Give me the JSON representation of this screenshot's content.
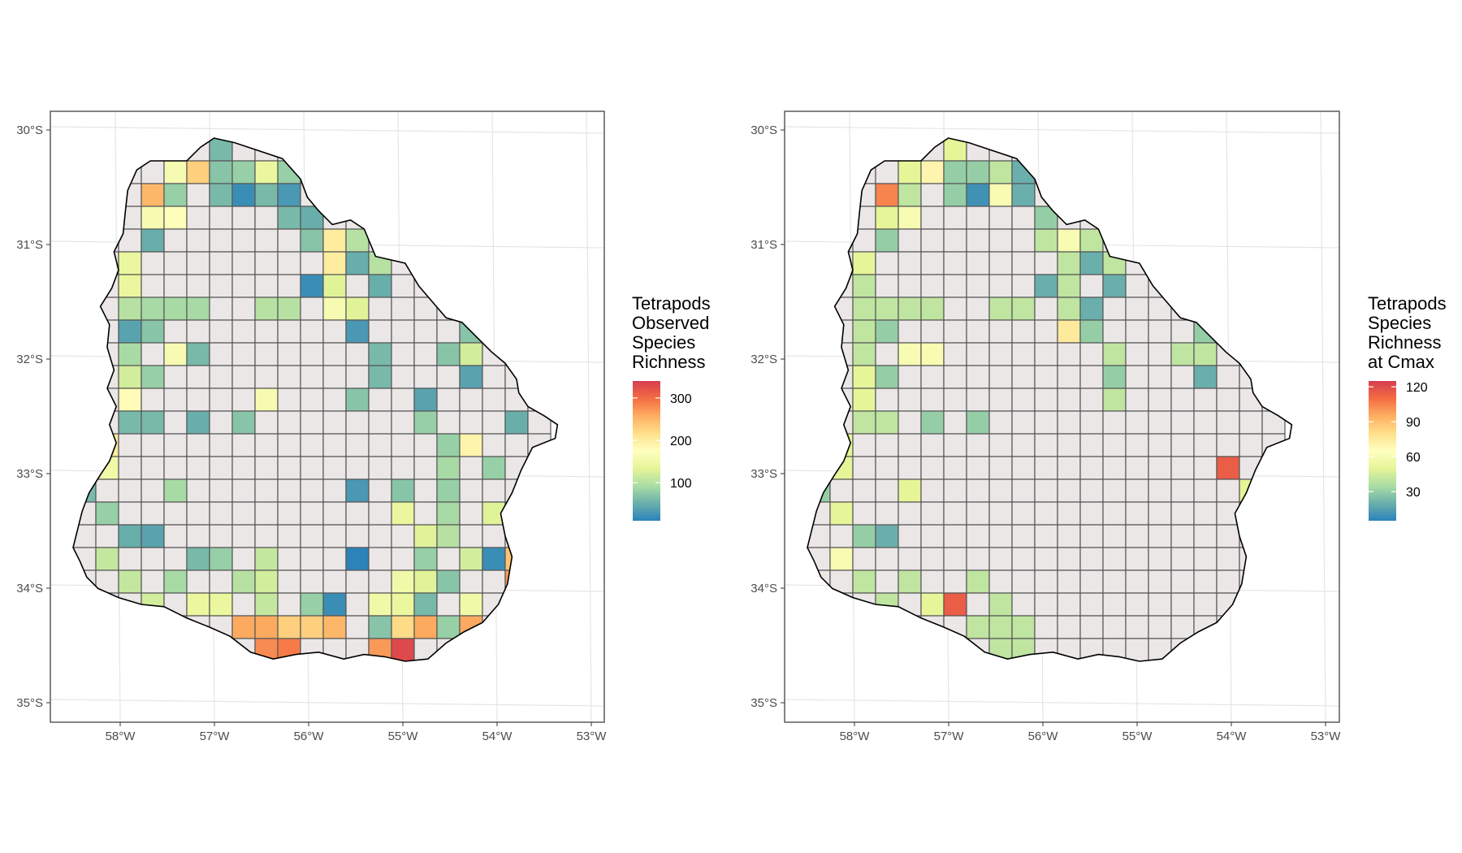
{
  "panels": [
    {
      "legend_title_lines": [
        "Tetrapods",
        "Observed",
        "Species",
        "Richness"
      ],
      "legend_ticks": [
        100,
        200,
        300
      ],
      "legend_range": [
        10,
        340
      ],
      "colors": {
        "missing": "#ebe7e6"
      },
      "values": [
        [
          null,
          null,
          null,
          null,
          null,
          null,
          60,
          null,
          null,
          null,
          null,
          null,
          null,
          null,
          null,
          null,
          null,
          null,
          null,
          null,
          null
        ],
        [
          null,
          null,
          null,
          null,
          160,
          230,
          70,
          80,
          140,
          80,
          null,
          null,
          null,
          null,
          null,
          null,
          null,
          null,
          null,
          null,
          null
        ],
        [
          null,
          null,
          null,
          250,
          80,
          null,
          60,
          20,
          60,
          30,
          null,
          null,
          null,
          null,
          null,
          null,
          null,
          null,
          null,
          null,
          null
        ],
        [
          null,
          null,
          null,
          160,
          170,
          null,
          null,
          null,
          null,
          60,
          50,
          null,
          null,
          null,
          null,
          null,
          null,
          null,
          null,
          null,
          null
        ],
        [
          null,
          null,
          null,
          50,
          null,
          null,
          null,
          null,
          null,
          null,
          70,
          200,
          100,
          null,
          null,
          null,
          null,
          null,
          null,
          null,
          null
        ],
        [
          null,
          null,
          140,
          null,
          null,
          null,
          null,
          null,
          null,
          null,
          null,
          200,
          50,
          100,
          null,
          null,
          null,
          null,
          null,
          null,
          null
        ],
        [
          null,
          null,
          140,
          null,
          null,
          null,
          null,
          null,
          null,
          null,
          20,
          130,
          null,
          50,
          null,
          null,
          null,
          null,
          null,
          null,
          null
        ],
        [
          null,
          null,
          100,
          90,
          90,
          90,
          null,
          null,
          100,
          100,
          null,
          160,
          130,
          null,
          null,
          null,
          null,
          null,
          30,
          null,
          null
        ],
        [
          null,
          null,
          40,
          70,
          null,
          null,
          null,
          null,
          null,
          null,
          null,
          null,
          30,
          null,
          null,
          null,
          null,
          70,
          null,
          null,
          null
        ],
        [
          null,
          null,
          90,
          null,
          160,
          60,
          null,
          null,
          null,
          null,
          null,
          null,
          null,
          60,
          null,
          null,
          70,
          120,
          null,
          280,
          null
        ],
        [
          null,
          null,
          120,
          80,
          null,
          null,
          null,
          null,
          null,
          null,
          null,
          null,
          null,
          60,
          null,
          null,
          null,
          40,
          null,
          null,
          null
        ],
        [
          null,
          null,
          180,
          null,
          null,
          null,
          null,
          null,
          160,
          null,
          null,
          null,
          70,
          null,
          null,
          40,
          null,
          null,
          null,
          null,
          null
        ],
        [
          null,
          null,
          60,
          60,
          null,
          50,
          null,
          70,
          null,
          null,
          null,
          null,
          null,
          null,
          null,
          80,
          null,
          null,
          null,
          50,
          null
        ],
        [
          null,
          200,
          null,
          null,
          null,
          null,
          null,
          null,
          null,
          null,
          null,
          null,
          null,
          null,
          null,
          null,
          80,
          190,
          null,
          null,
          null
        ],
        [
          null,
          150,
          null,
          null,
          null,
          null,
          null,
          null,
          null,
          null,
          null,
          null,
          null,
          null,
          null,
          null,
          90,
          null,
          80,
          null,
          null
        ],
        [
          60,
          null,
          null,
          null,
          90,
          null,
          null,
          null,
          null,
          null,
          null,
          null,
          30,
          null,
          70,
          null,
          80,
          null,
          null,
          null,
          null
        ],
        [
          null,
          80,
          null,
          null,
          null,
          null,
          null,
          null,
          null,
          null,
          null,
          null,
          null,
          null,
          140,
          null,
          90,
          null,
          130,
          200,
          null
        ],
        [
          null,
          null,
          50,
          40,
          null,
          null,
          null,
          null,
          null,
          null,
          null,
          null,
          null,
          null,
          null,
          130,
          100,
          null,
          null,
          null,
          220
        ],
        [
          null,
          110,
          null,
          null,
          null,
          60,
          80,
          null,
          110,
          null,
          null,
          null,
          10,
          null,
          null,
          80,
          null,
          120,
          20,
          240,
          null
        ],
        [
          null,
          null,
          110,
          null,
          90,
          null,
          null,
          100,
          120,
          null,
          null,
          null,
          null,
          null,
          150,
          130,
          70,
          null,
          null,
          270,
          null
        ],
        [
          null,
          null,
          null,
          120,
          null,
          140,
          140,
          null,
          110,
          null,
          80,
          20,
          null,
          150,
          140,
          60,
          null,
          150,
          null,
          null,
          null
        ],
        [
          null,
          null,
          null,
          null,
          null,
          null,
          null,
          260,
          260,
          230,
          230,
          250,
          null,
          70,
          220,
          260,
          80,
          260,
          null,
          null,
          null
        ],
        [
          null,
          null,
          null,
          null,
          null,
          null,
          null,
          null,
          280,
          290,
          null,
          null,
          null,
          270,
          330,
          null,
          null,
          null,
          null,
          null,
          null
        ]
      ]
    },
    {
      "legend_title_lines": [
        "Tetrapods",
        "Species",
        "Richness",
        "at Cmax"
      ],
      "legend_ticks": [
        30,
        60,
        90,
        120
      ],
      "legend_range": [
        5,
        125
      ],
      "colors": {
        "missing": "#ebe7e6"
      },
      "values": [
        [
          null,
          null,
          null,
          null,
          null,
          null,
          50,
          null,
          null,
          null,
          null,
          null,
          null,
          null,
          null,
          null,
          null,
          null,
          null,
          null,
          null
        ],
        [
          null,
          null,
          null,
          null,
          50,
          70,
          30,
          30,
          40,
          20,
          null,
          null,
          null,
          null,
          null,
          null,
          null,
          null,
          null,
          null,
          null
        ],
        [
          null,
          null,
          null,
          105,
          40,
          null,
          30,
          10,
          60,
          20,
          null,
          null,
          null,
          null,
          null,
          null,
          null,
          null,
          null,
          null,
          null
        ],
        [
          null,
          null,
          null,
          50,
          60,
          null,
          null,
          null,
          null,
          null,
          30,
          null,
          null,
          null,
          null,
          null,
          null,
          null,
          null,
          null,
          null
        ],
        [
          null,
          null,
          null,
          30,
          null,
          null,
          null,
          null,
          null,
          null,
          40,
          60,
          40,
          null,
          null,
          null,
          null,
          null,
          null,
          null,
          null
        ],
        [
          null,
          null,
          50,
          null,
          null,
          null,
          null,
          null,
          null,
          null,
          null,
          40,
          20,
          40,
          null,
          null,
          null,
          null,
          null,
          null,
          null
        ],
        [
          null,
          null,
          40,
          null,
          null,
          null,
          null,
          null,
          null,
          null,
          20,
          40,
          null,
          20,
          null,
          null,
          null,
          null,
          null,
          null,
          null
        ],
        [
          null,
          null,
          40,
          40,
          40,
          40,
          null,
          null,
          40,
          40,
          null,
          40,
          20,
          null,
          null,
          null,
          null,
          null,
          30,
          null,
          null
        ],
        [
          null,
          null,
          40,
          30,
          null,
          null,
          null,
          null,
          null,
          null,
          null,
          75,
          30,
          null,
          null,
          null,
          null,
          30,
          null,
          null,
          null
        ],
        [
          null,
          null,
          40,
          null,
          60,
          60,
          null,
          null,
          null,
          null,
          null,
          null,
          null,
          40,
          null,
          null,
          40,
          40,
          null,
          60,
          null
        ],
        [
          null,
          null,
          50,
          30,
          null,
          null,
          null,
          null,
          null,
          null,
          null,
          null,
          null,
          30,
          null,
          null,
          null,
          20,
          null,
          null,
          null
        ],
        [
          null,
          null,
          50,
          null,
          null,
          null,
          null,
          null,
          null,
          null,
          null,
          null,
          null,
          40,
          null,
          null,
          null,
          null,
          null,
          null,
          null
        ],
        [
          null,
          null,
          40,
          40,
          null,
          30,
          null,
          30,
          null,
          null,
          null,
          null,
          null,
          null,
          null,
          null,
          null,
          null,
          null,
          null,
          null
        ],
        [
          null,
          50,
          null,
          null,
          null,
          null,
          null,
          null,
          null,
          null,
          null,
          null,
          null,
          null,
          null,
          null,
          null,
          null,
          null,
          null,
          null
        ],
        [
          null,
          50,
          null,
          null,
          null,
          null,
          null,
          null,
          null,
          null,
          null,
          null,
          null,
          null,
          null,
          null,
          null,
          null,
          115,
          null,
          null
        ],
        [
          30,
          null,
          null,
          null,
          50,
          null,
          null,
          null,
          null,
          null,
          null,
          null,
          null,
          null,
          null,
          null,
          null,
          null,
          null,
          50,
          null
        ],
        [
          null,
          50,
          null,
          null,
          null,
          null,
          null,
          null,
          null,
          null,
          null,
          null,
          null,
          null,
          null,
          null,
          null,
          null,
          null,
          null,
          null
        ],
        [
          null,
          null,
          30,
          20,
          null,
          null,
          null,
          null,
          null,
          null,
          null,
          null,
          null,
          null,
          null,
          null,
          null,
          null,
          null,
          null,
          null
        ],
        [
          null,
          60,
          null,
          null,
          null,
          null,
          null,
          null,
          null,
          null,
          null,
          null,
          null,
          null,
          null,
          null,
          null,
          null,
          null,
          null,
          null
        ],
        [
          null,
          null,
          40,
          null,
          40,
          null,
          null,
          40,
          null,
          null,
          null,
          null,
          null,
          null,
          null,
          null,
          null,
          null,
          null,
          null,
          null
        ],
        [
          null,
          null,
          null,
          40,
          null,
          50,
          115,
          null,
          40,
          null,
          null,
          null,
          null,
          null,
          null,
          null,
          null,
          null,
          null,
          null,
          null
        ],
        [
          null,
          null,
          null,
          null,
          null,
          null,
          null,
          40,
          40,
          40,
          null,
          null,
          null,
          null,
          null,
          null,
          null,
          null,
          null,
          null,
          null
        ],
        [
          null,
          null,
          null,
          null,
          null,
          null,
          null,
          null,
          40,
          40,
          null,
          null,
          null,
          null,
          null,
          null,
          null,
          null,
          null,
          null,
          null
        ]
      ]
    }
  ],
  "x_ticks": [
    "58°W",
    "57°W",
    "56°W",
    "55°W",
    "54°W",
    "53°W"
  ],
  "y_ticks": [
    "30°S",
    "31°S",
    "32°S",
    "33°S",
    "34°S",
    "35°S"
  ]
}
